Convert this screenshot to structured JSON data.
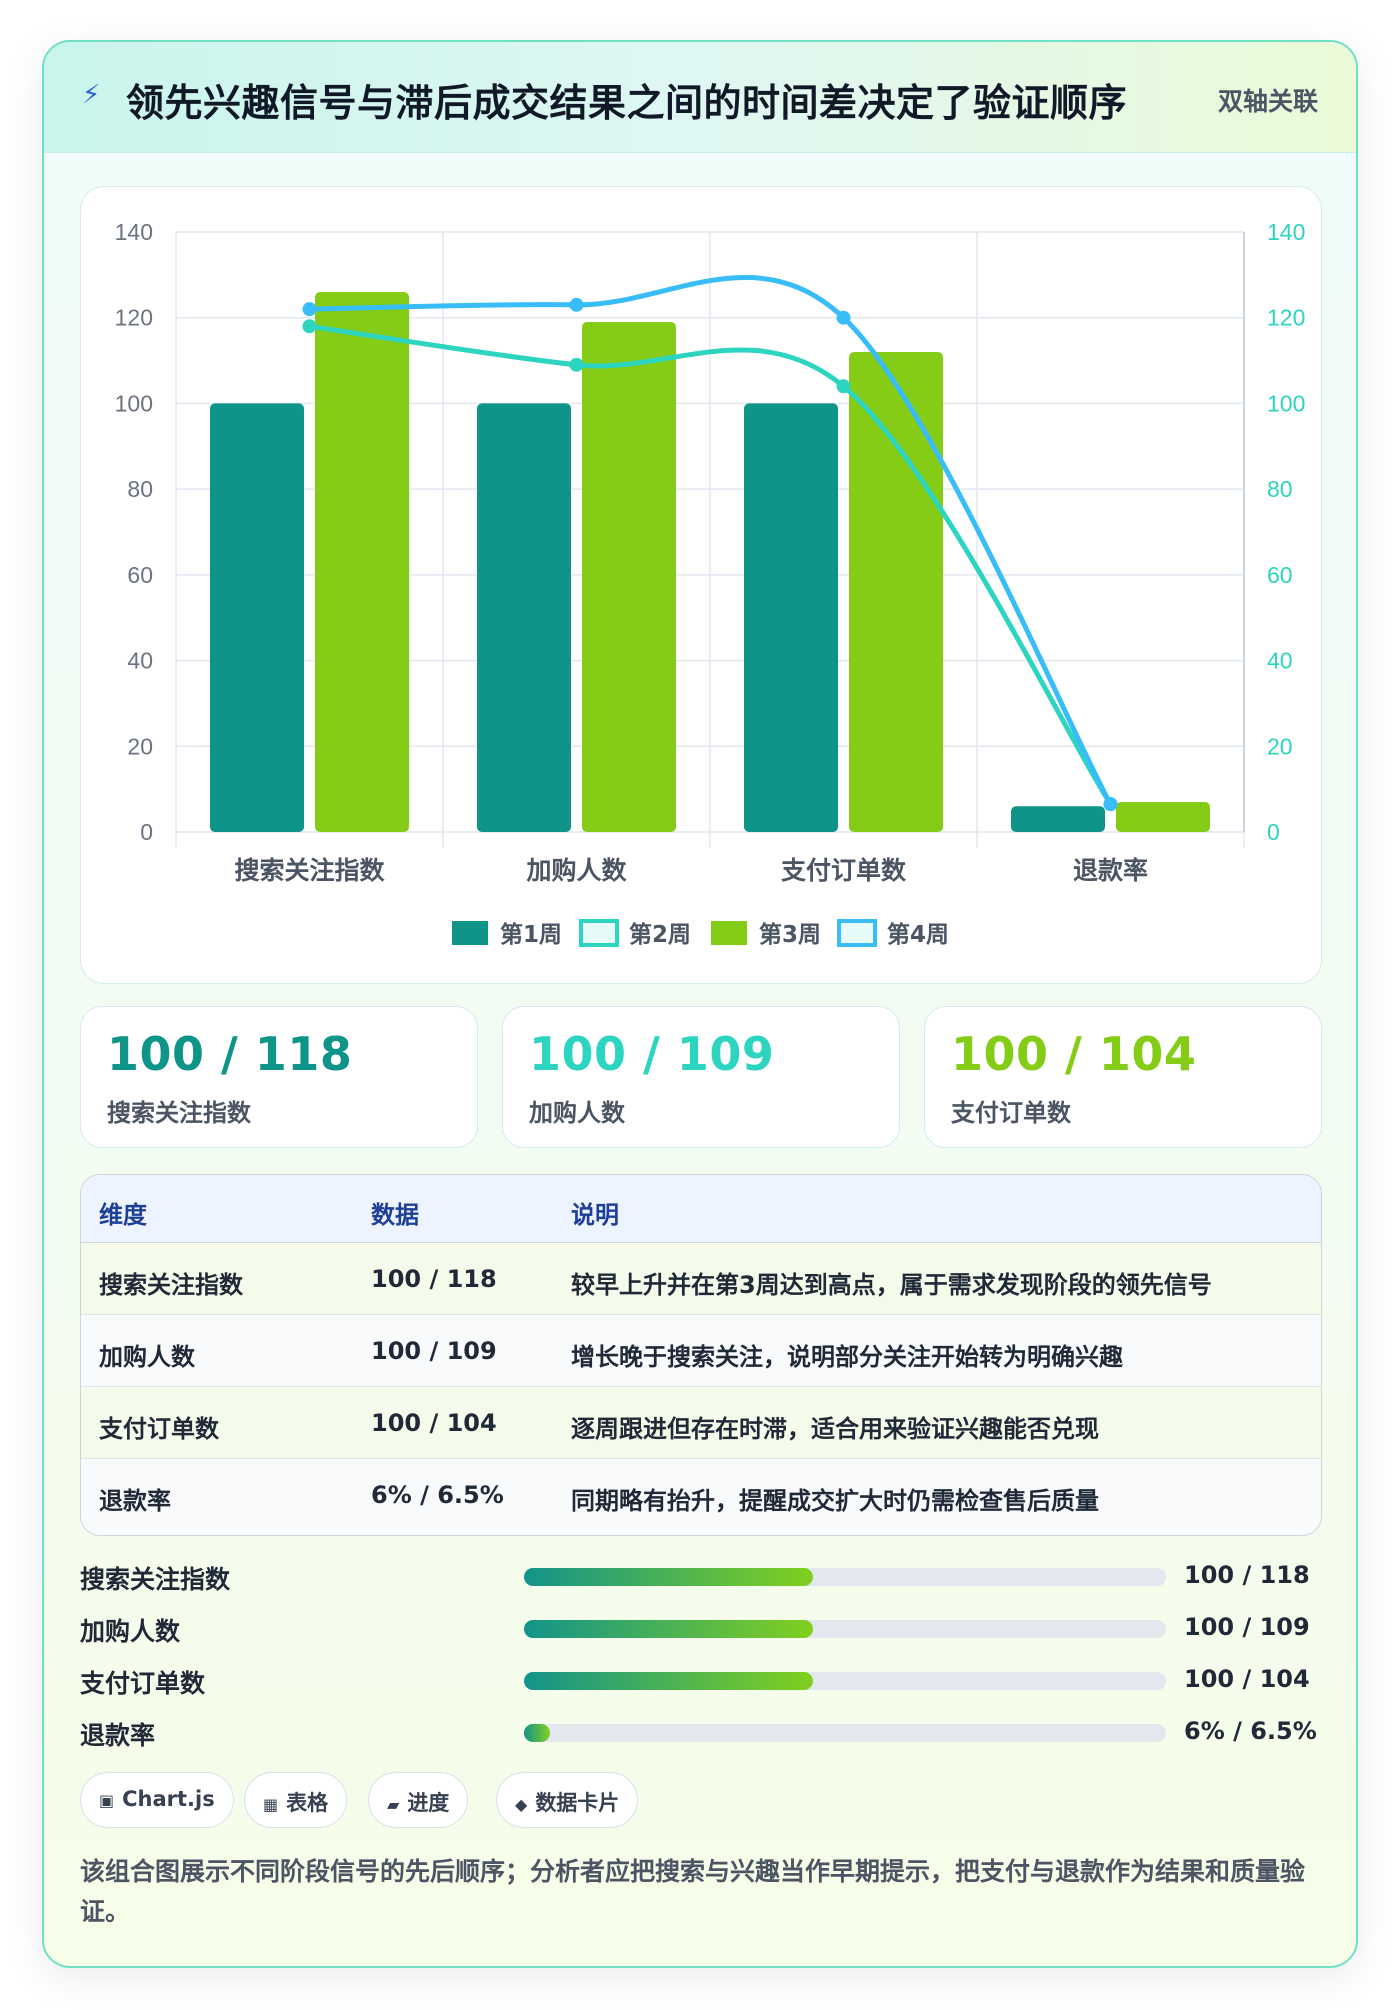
{
  "header": {
    "title": "领先兴趣信号与滞后成交结果之间的时间差决定了验证顺序",
    "badge": "双轴关联"
  },
  "colors": {
    "week1": "#0e9488",
    "week2": "#2dd4bf",
    "week3": "#84cc16",
    "week4": "#38bdf8",
    "stat_colors": [
      "#0e9488",
      "#2dd4bf",
      "#84cc16"
    ]
  },
  "chart_data": {
    "type": "bar",
    "categories": [
      "搜索关注指数",
      "加购人数",
      "支付订单数",
      "退款率"
    ],
    "series": [
      {
        "name": "第1周",
        "type": "bar",
        "axis": "left",
        "values": [
          100,
          100,
          100,
          6
        ]
      },
      {
        "name": "第2周",
        "type": "line",
        "axis": "right",
        "values": [
          118,
          109,
          104,
          6.5
        ]
      },
      {
        "name": "第3周",
        "type": "bar",
        "axis": "left",
        "values": [
          126,
          119,
          112,
          7
        ]
      },
      {
        "name": "第4周",
        "type": "line",
        "axis": "right",
        "values": [
          122,
          123,
          120,
          6.5
        ]
      }
    ],
    "ylim": [
      0,
      140
    ],
    "y2lim": [
      0,
      140
    ],
    "yticks": [
      "0",
      "20",
      "40",
      "60",
      "80",
      "100",
      "120",
      "140"
    ],
    "grid": true,
    "legend": "bottom"
  },
  "stats": [
    {
      "value": "100 / 118",
      "label": "搜索关注指数"
    },
    {
      "value": "100 / 109",
      "label": "加购人数"
    },
    {
      "value": "100 / 104",
      "label": "支付订单数"
    }
  ],
  "table": {
    "headers": [
      "维度",
      "数据",
      "说明"
    ],
    "rows": [
      [
        "搜索关注指数",
        "100 / 118",
        "较早上升并在第3周达到高点，属于需求发现阶段的领先信号"
      ],
      [
        "加购人数",
        "100 / 109",
        "增长晚于搜索关注，说明部分关注开始转为明确兴趣"
      ],
      [
        "支付订单数",
        "100 / 104",
        "逐周跟进但存在时滞，适合用来验证兴趣能否兑现"
      ],
      [
        "退款率",
        "6% / 6.5%",
        "同期略有抬升，提醒成交扩大时仍需检查售后质量"
      ]
    ]
  },
  "progress": [
    {
      "label": "搜索关注指数",
      "value": "100 / 118",
      "fraction": 0.45
    },
    {
      "label": "加购人数",
      "value": "100 / 109",
      "fraction": 0.45
    },
    {
      "label": "支付订单数",
      "value": "100 / 104",
      "fraction": 0.45
    },
    {
      "label": "退款率",
      "value": "6% / 6.5%",
      "fraction": 0.04
    }
  ],
  "chips": [
    {
      "icon": "chart-icon",
      "glyph": "▣",
      "label": "Chart.js"
    },
    {
      "icon": "table-icon",
      "glyph": "▦",
      "label": "表格"
    },
    {
      "icon": "progress-icon",
      "glyph": "▰",
      "label": "进度"
    },
    {
      "icon": "card-icon",
      "glyph": "◆",
      "label": "数据卡片"
    }
  ],
  "footnote": "该组合图展示不同阶段信号的先后顺序；分析者应把搜索与兴趣当作早期提示，把支付与退款作为结果和质量验证。"
}
